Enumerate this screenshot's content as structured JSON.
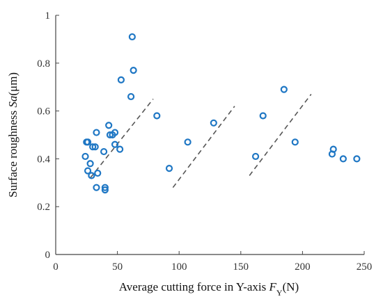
{
  "chart_data": {
    "type": "scatter",
    "title": "",
    "xlabel": {
      "prefix": "Average cutting force in Y-axis ",
      "symbol": "F",
      "subscript": "Y",
      "unit": "(N)"
    },
    "ylabel": {
      "prefix": "Surface roughness ",
      "symbol": "Sa",
      "unit": "(μm)"
    },
    "xlim": [
      0,
      250
    ],
    "ylim": [
      0,
      1
    ],
    "xticks": [
      0,
      50,
      100,
      150,
      200,
      250
    ],
    "yticks": [
      0,
      0.2,
      0.4,
      0.6,
      0.8,
      1
    ],
    "ytick_labels": [
      "0",
      "0.2",
      "0.4",
      "0.6",
      "0.8",
      "1"
    ],
    "grid": false,
    "marker": "open-circle",
    "colors": {
      "points": "#1f77c4",
      "trend": "#555555",
      "axis": "#444444"
    },
    "series": [
      {
        "values": [
          [
            24,
            0.41
          ],
          [
            25,
            0.47
          ],
          [
            26,
            0.47
          ],
          [
            26,
            0.35
          ],
          [
            28,
            0.38
          ],
          [
            29,
            0.33
          ],
          [
            30,
            0.45
          ],
          [
            32,
            0.45
          ],
          [
            33,
            0.51
          ],
          [
            33,
            0.28
          ],
          [
            34,
            0.34
          ],
          [
            39,
            0.43
          ],
          [
            40,
            0.27
          ],
          [
            40,
            0.28
          ],
          [
            43,
            0.54
          ],
          [
            44,
            0.5
          ],
          [
            46,
            0.5
          ],
          [
            48,
            0.51
          ],
          [
            48,
            0.46
          ],
          [
            52,
            0.44
          ],
          [
            53,
            0.73
          ],
          [
            61,
            0.66
          ],
          [
            62,
            0.91
          ],
          [
            63,
            0.77
          ],
          [
            82,
            0.58
          ],
          [
            92,
            0.36
          ],
          [
            107,
            0.47
          ],
          [
            128,
            0.55
          ],
          [
            162,
            0.41
          ],
          [
            168,
            0.58
          ],
          [
            185,
            0.69
          ],
          [
            194,
            0.47
          ],
          [
            224,
            0.42
          ],
          [
            225,
            0.44
          ],
          [
            233,
            0.4
          ],
          [
            244,
            0.4
          ]
        ]
      }
    ],
    "trend_lines": [
      {
        "style": "dashed",
        "points": [
          [
            28,
            0.32
          ],
          [
            79,
            0.65
          ]
        ]
      },
      {
        "style": "dashed",
        "points": [
          [
            95,
            0.28
          ],
          [
            145,
            0.62
          ]
        ]
      },
      {
        "style": "dashed",
        "points": [
          [
            157,
            0.33
          ],
          [
            207,
            0.67
          ]
        ]
      }
    ]
  }
}
